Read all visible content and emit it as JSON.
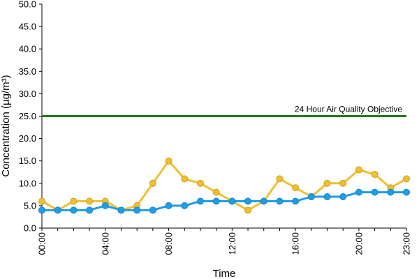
{
  "chart_data": {
    "type": "line",
    "title": "",
    "xlabel": "Time",
    "ylabel": "Concentration (µg/m³)",
    "x_tick_labels": [
      "00:00",
      "04:00",
      "08:00",
      "12:00",
      "16:00",
      "20:00",
      "23:00"
    ],
    "x_tick_hours": [
      0,
      4,
      8,
      12,
      16,
      20,
      23
    ],
    "y_tick_labels": [
      "0.0",
      "5.0",
      "10.0",
      "15.0",
      "20.0",
      "25.0",
      "30.0",
      "35.0",
      "40.0",
      "45.0",
      "50.0"
    ],
    "ylim": [
      0,
      50
    ],
    "xlim": [
      0,
      23
    ],
    "grid": false,
    "x_hours": [
      0,
      1,
      2,
      3,
      4,
      5,
      6,
      7,
      8,
      9,
      10,
      11,
      12,
      13,
      14,
      15,
      16,
      17,
      18,
      19,
      20,
      21,
      22,
      23
    ],
    "series": [
      {
        "color": "#f0c030",
        "values": [
          6,
          4,
          6,
          6,
          6,
          4,
          5,
          10,
          15,
          11,
          10,
          8,
          6,
          4,
          6,
          11,
          9,
          7,
          10,
          10,
          13,
          12,
          9,
          11
        ]
      },
      {
        "color": "#1e9ee8",
        "values": [
          4,
          4,
          4,
          4,
          5,
          4,
          4,
          4,
          5,
          5,
          6,
          6,
          6,
          6,
          6,
          6,
          6,
          7,
          7,
          7,
          8,
          8,
          8,
          8
        ]
      }
    ],
    "reference_line": {
      "label": "24 Hour Air Quality Objective",
      "value": 25,
      "color": "#1e7a1e"
    }
  }
}
